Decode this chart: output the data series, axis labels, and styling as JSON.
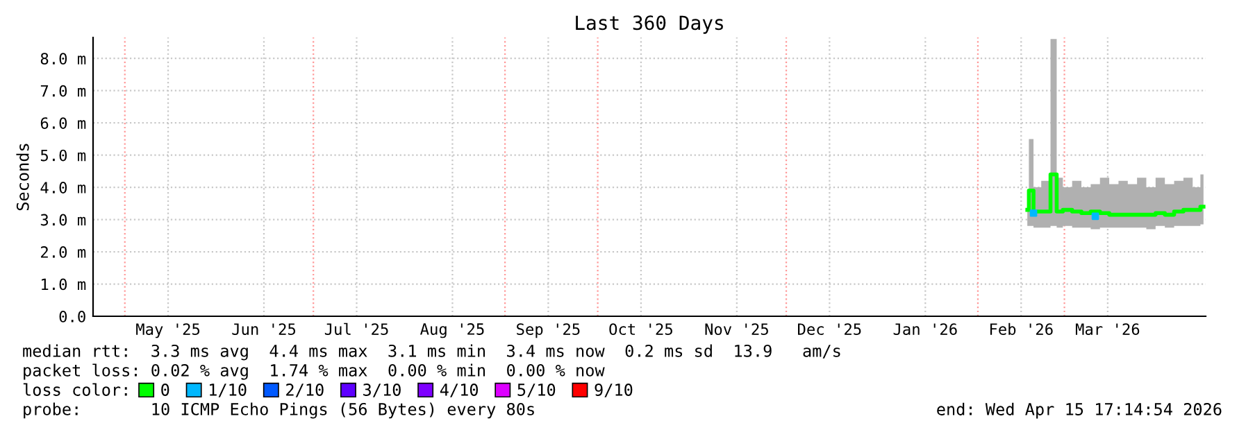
{
  "chart_data": {
    "type": "line",
    "title": "Last 360 Days",
    "ylabel": "Seconds",
    "xlim": [
      "2025-04-20T17:14",
      "2026-04-15T17:14"
    ],
    "xticks": [
      {
        "value": "2025-05-15",
        "label": "May '25"
      },
      {
        "value": "2025-06-15",
        "label": "Jun '25"
      },
      {
        "value": "2025-07-15",
        "label": "Jul '25"
      },
      {
        "value": "2025-08-15",
        "label": "Aug '25"
      },
      {
        "value": "2025-09-15",
        "label": "Sep '25"
      },
      {
        "value": "2025-10-15",
        "label": "Oct '25"
      },
      {
        "value": "2025-11-15",
        "label": "Nov '25"
      },
      {
        "value": "2025-12-15",
        "label": "Dec '25"
      },
      {
        "value": "2026-01-15",
        "label": "Jan '26"
      },
      {
        "value": "2026-02-15",
        "label": "Feb '26"
      },
      {
        "value": "2026-03-15",
        "label": "Mar '26"
      }
    ],
    "ylim": [
      0,
      8.65
    ],
    "yticks": [
      {
        "value": 0,
        "label": "0.0"
      },
      {
        "value": 1,
        "label": "1.0 m"
      },
      {
        "value": 2,
        "label": "2.0 m"
      },
      {
        "value": 3,
        "label": "3.0 m"
      },
      {
        "value": 4,
        "label": "4.0 m"
      },
      {
        "value": 5,
        "label": "5.0 m"
      },
      {
        "value": 6,
        "label": "6.0 m"
      },
      {
        "value": 7,
        "label": "7.0 m"
      },
      {
        "value": 8,
        "label": "8.0 m"
      }
    ],
    "grid": true,
    "ref_lines": [
      {
        "axis": "x",
        "value": "2025-05-01",
        "label": null,
        "color": "#ff9999",
        "line_style": "dotted"
      },
      {
        "axis": "x",
        "value": "2025-07-01",
        "label": null,
        "color": "#ff9999",
        "line_style": "dotted"
      },
      {
        "axis": "x",
        "value": "2025-09-01",
        "label": null,
        "color": "#ff9999",
        "line_style": "dotted"
      },
      {
        "axis": "x",
        "value": "2025-10-01",
        "label": null,
        "color": "#ff9999",
        "line_style": "dotted"
      },
      {
        "axis": "x",
        "value": "2025-12-01",
        "label": null,
        "color": "#ff9999",
        "line_style": "dotted"
      },
      {
        "axis": "x",
        "value": "2026-02-01",
        "label": null,
        "color": "#ff9999",
        "line_style": "dotted"
      },
      {
        "axis": "x",
        "value": "2026-03-01",
        "label": null,
        "color": "#ff9999",
        "line_style": "dotted"
      }
    ],
    "legend": "bottom",
    "legend_title": "loss color:",
    "series": [
      {
        "name": "0",
        "color": "#00ff00",
        "x": [
          "2026-02-17",
          "2026-02-18",
          "2026-02-20",
          "2026-02-23",
          "2026-02-26",
          "2026-02-27",
          "2026-03-02",
          "2026-03-05",
          "2026-03-08",
          "2026-03-11",
          "2026-03-14",
          "2026-03-17",
          "2026-03-20",
          "2026-03-23",
          "2026-03-26",
          "2026-03-29",
          "2026-04-01",
          "2026-04-04",
          "2026-04-07",
          "2026-04-10",
          "2026-04-13",
          "2026-04-15"
        ],
        "values": [
          3.3,
          3.9,
          3.25,
          3.25,
          4.4,
          3.25,
          3.3,
          3.25,
          3.2,
          3.25,
          3.2,
          3.15,
          3.15,
          3.15,
          3.15,
          3.15,
          3.2,
          3.15,
          3.25,
          3.3,
          3.3,
          3.4
        ],
        "lower": [
          2.8,
          2.8,
          2.75,
          2.75,
          2.8,
          2.75,
          2.8,
          2.75,
          2.75,
          2.7,
          2.75,
          2.75,
          2.75,
          2.75,
          2.75,
          2.7,
          2.8,
          2.75,
          2.8,
          2.8,
          2.8,
          2.85
        ],
        "upper": [
          3.5,
          5.5,
          4.0,
          4.2,
          8.6,
          4.3,
          4.0,
          4.2,
          4.0,
          4.1,
          4.3,
          4.1,
          4.2,
          4.1,
          4.3,
          4.0,
          4.3,
          4.1,
          4.2,
          4.3,
          4.0,
          4.4
        ]
      },
      {
        "name": "1/10",
        "color": "#00b8ff",
        "type": "scatter",
        "x": [
          "2026-02-19",
          "2026-03-11"
        ],
        "values": [
          3.2,
          3.1
        ]
      },
      {
        "name": "2/10",
        "color": "#0059ff",
        "type": "scatter"
      },
      {
        "name": "3/10",
        "color": "#5e00ff",
        "type": "scatter"
      },
      {
        "name": "4/10",
        "color": "#7e00ff",
        "type": "scatter"
      },
      {
        "name": "5/10",
        "color": "#dd00ff",
        "type": "scatter"
      },
      {
        "name": "9/10",
        "color": "#ff0000",
        "type": "scatter"
      }
    ],
    "annotations": [
      "median rtt:  3.3 ms avg  4.4 ms max  3.1 ms min  3.4 ms now  0.2 ms sd  13.9   am/s",
      "packet loss: 0.02 % avg  1.74 % max  0.00 % min  0.00 % now",
      "probe:       10 ICMP Echo Pings (56 Bytes) every 80s",
      "end: Wed Apr 15 17:14:54 2026"
    ]
  }
}
